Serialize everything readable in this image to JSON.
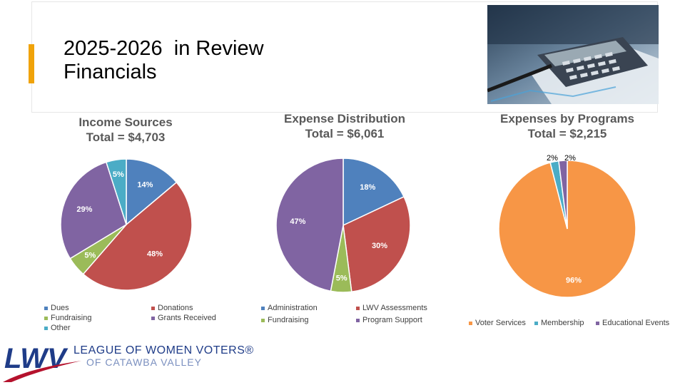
{
  "slide": {
    "title_line1": "2025-2026  in Review",
    "title_line2": "Financials",
    "accent_color": "#f0a30a"
  },
  "logo": {
    "mark": "LWV",
    "line1": "LEAGUE OF WOMEN VOTERS®",
    "line2": "OF CATAWBA VALLEY",
    "mark_color": "#1f3c88",
    "swoosh_color": "#b5122d"
  },
  "photo": {
    "icon": "calculator-photo"
  },
  "chart_data": [
    {
      "type": "pie",
      "title": "Income Sources",
      "subtitle": "Total = $4,703",
      "categories": [
        "Dues",
        "Donations",
        "Fundraising",
        "Grants Received",
        "Other"
      ],
      "values": [
        14,
        48,
        5,
        29,
        5
      ],
      "labels": [
        "14%",
        "48%",
        "5%",
        "29%",
        "5%"
      ],
      "colors": [
        "#4f81bd",
        "#c0504d",
        "#9bbb59",
        "#8064a2",
        "#4bacc6"
      ],
      "legend": "bottom"
    },
    {
      "type": "pie",
      "title": "Expense Distribution",
      "subtitle": "Total = $6,061",
      "categories": [
        "Administration",
        "LWV Assessments",
        "Fundraising",
        "Program Support"
      ],
      "values": [
        18,
        30,
        5,
        47
      ],
      "labels": [
        "18%",
        "30%",
        "5%",
        "47%"
      ],
      "colors": [
        "#4f81bd",
        "#c0504d",
        "#9bbb59",
        "#8064a2"
      ],
      "legend": "bottom"
    },
    {
      "type": "pie",
      "title": "Expenses by Programs",
      "subtitle": "Total = $2,215",
      "categories": [
        "Voter Services",
        "Membership",
        "Educational Events"
      ],
      "values": [
        96,
        2,
        2
      ],
      "labels": [
        "96%",
        "2%",
        "2%"
      ],
      "colors": [
        "#f79646",
        "#4bacc6",
        "#8064a2"
      ],
      "legend": "bottom"
    }
  ]
}
